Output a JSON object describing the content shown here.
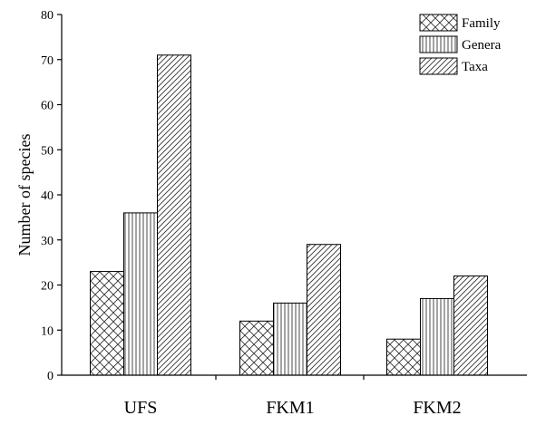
{
  "chart_data": {
    "type": "bar",
    "categories": [
      "UFS",
      "FKM1",
      "FKM2"
    ],
    "series": [
      {
        "name": "Family",
        "values": [
          23,
          12,
          8
        ],
        "pattern": "crosshatch"
      },
      {
        "name": "Genera",
        "values": [
          36,
          16,
          17
        ],
        "pattern": "vertical"
      },
      {
        "name": "Taxa",
        "values": [
          71,
          29,
          22
        ],
        "pattern": "diagonal"
      }
    ],
    "ylabel": "Number of species",
    "xlabel": "",
    "ylim": [
      0,
      80
    ],
    "yticks": [
      0,
      10,
      20,
      30,
      40,
      50,
      60,
      70,
      80
    ],
    "legend_position": "top-right",
    "grid": false
  }
}
